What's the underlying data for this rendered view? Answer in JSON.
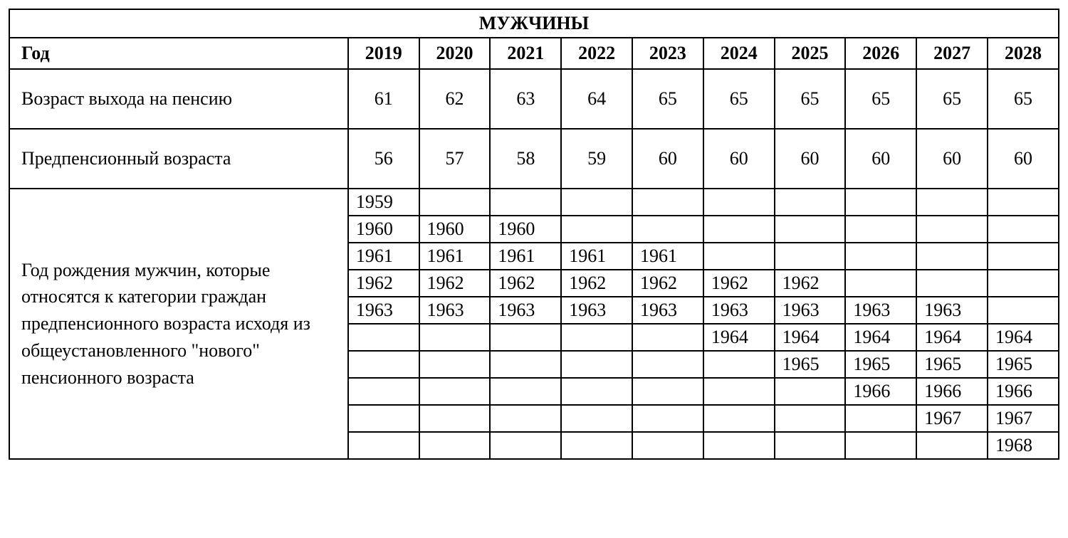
{
  "table": {
    "title": "МУЖЧИНЫ",
    "year_label": "Год",
    "years": [
      "2019",
      "2020",
      "2021",
      "2022",
      "2023",
      "2024",
      "2025",
      "2026",
      "2027",
      "2028"
    ],
    "rows": [
      {
        "label": "Возраст выхода на пенсию",
        "values": [
          "61",
          "62",
          "63",
          "64",
          "65",
          "65",
          "65",
          "65",
          "65",
          "65"
        ]
      },
      {
        "label": "Предпенсионный возраста",
        "values": [
          "56",
          "57",
          "58",
          "59",
          "60",
          "60",
          "60",
          "60",
          "60",
          "60"
        ]
      }
    ],
    "birth_section": {
      "label": "Год рождения мужчин, которые относятся к категории граждан предпенсионного возраста исходя из общеустановленного \"нового\" пенсионного возраста",
      "rows": [
        [
          "1959",
          "",
          "",
          "",
          "",
          "",
          "",
          "",
          "",
          ""
        ],
        [
          "1960",
          "1960",
          "1960",
          "",
          "",
          "",
          "",
          "",
          "",
          ""
        ],
        [
          "1961",
          "1961",
          "1961",
          "1961",
          "1961",
          "",
          "",
          "",
          "",
          ""
        ],
        [
          "1962",
          "1962",
          "1962",
          "1962",
          "1962",
          "1962",
          "1962",
          "",
          "",
          ""
        ],
        [
          "1963",
          "1963",
          "1963",
          "1963",
          "1963",
          "1963",
          "1963",
          "1963",
          "1963",
          ""
        ],
        [
          "",
          "",
          "",
          "",
          "",
          "1964",
          "1964",
          "1964",
          "1964",
          "1964"
        ],
        [
          "",
          "",
          "",
          "",
          "",
          "",
          "1965",
          "1965",
          "1965",
          "1965"
        ],
        [
          "",
          "",
          "",
          "",
          "",
          "",
          "",
          "1966",
          "1966",
          "1966"
        ],
        [
          "",
          "",
          "",
          "",
          "",
          "",
          "",
          "",
          "1967",
          "1967"
        ],
        [
          "",
          "",
          "",
          "",
          "",
          "",
          "",
          "",
          "",
          "1968"
        ]
      ]
    }
  },
  "styling": {
    "border_color": "#000000",
    "background_color": "#ffffff",
    "text_color": "#000000",
    "font_family": "Times New Roman",
    "title_fontsize": 26,
    "header_fontsize": 26,
    "cell_fontsize": 26,
    "border_width": 2
  }
}
